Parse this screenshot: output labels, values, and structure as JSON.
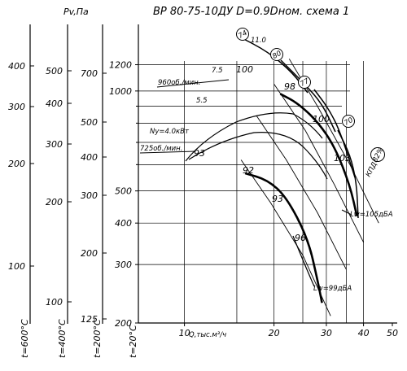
{
  "chart_data": {
    "type": "line",
    "title": "ВР 80-75-10ДУ D=0.9Dном. схема 1",
    "pv_label": "Pv,Па",
    "xlabel": "Q,тыс.м³/ч",
    "x_scale": "log",
    "y_scale": "log",
    "xlim": [
      7,
      50
    ],
    "ylim": [
      200,
      1500
    ],
    "x_ticks": [
      "10",
      "20",
      "30",
      "40",
      "50"
    ],
    "y_ticks": [
      "200",
      "300",
      "400",
      "500",
      "1000",
      "1200"
    ],
    "temperature_axes": [
      {
        "label": "t=600°С",
        "ticks": [
          "100",
          "200",
          "300",
          "400"
        ]
      },
      {
        "label": "t=400°С",
        "ticks": [
          "100",
          "200",
          "300",
          "400",
          "500"
        ]
      },
      {
        "label": "t=200°С",
        "ticks": [
          "125",
          "200",
          "300",
          "400",
          "500",
          "700"
        ]
      },
      {
        "label": "t=20°С",
        "ticks": []
      }
    ],
    "series": [
      {
        "name": "960об./мин.",
        "x": [
          21.0,
          24.0,
          28.0,
          32.0,
          36.0,
          38.0
        ],
        "y": [
          980,
          920,
          810,
          680,
          520,
          420
        ]
      },
      {
        "name": "725об./мин.",
        "x": [
          16.0,
          19.0,
          22.0,
          26.0,
          28.0,
          29.0
        ],
        "y": [
          565,
          540,
          480,
          360,
          270,
          230
        ]
      }
    ],
    "power_lines": [
      {
        "label": "11.0",
        "x": [
          22.5,
          28.0,
          36.0,
          45.0
        ]
      },
      {
        "label": "7.5",
        "x": [
          20.0,
          25.5,
          32.0,
          40.0
        ]
      },
      {
        "label": "5.5",
        "x": [
          17.5,
          22.0,
          28.0,
          35.0
        ]
      },
      {
        "label": "Ny=4.0кВт",
        "x": [
          15.5,
          19.5,
          25.0,
          31.0
        ]
      }
    ],
    "efficiency_labels": {
      "curve_circles": [
        "74",
        "80",
        "77",
        "70"
      ],
      "values_960": [
        "100",
        "98",
        "100",
        "103"
      ],
      "values_725": [
        "93",
        "92",
        "93",
        "96"
      ],
      "kpd_label": "КПД=",
      "kpd_value": "82%"
    },
    "noise_labels": [
      "Lw=105дБА",
      "Lw=99дБА"
    ],
    "grid": true
  }
}
